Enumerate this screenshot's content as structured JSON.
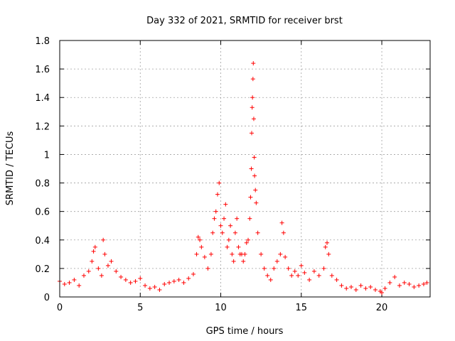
{
  "chart_data": {
    "type": "scatter",
    "title": "Day 332 of 2021, SRMTID for receiver brst",
    "xlabel": "GPS time / hours",
    "ylabel": "SRMTID / TECUs",
    "xlim": [
      0,
      23
    ],
    "ylim": [
      0,
      1.8
    ],
    "xticks": [
      0,
      5,
      10,
      15,
      20
    ],
    "yticks": [
      0,
      0.2,
      0.4,
      0.6,
      0.8,
      1,
      1.2,
      1.4,
      1.6,
      1.8
    ],
    "xtick_labels": [
      "0",
      "5",
      "10",
      "15",
      "20"
    ],
    "ytick_labels": [
      "0",
      "0.2",
      "0.4",
      "0.6",
      "0.8",
      "1",
      "1.2",
      "1.4",
      "1.6",
      "1.8"
    ],
    "grid": true,
    "marker": "+",
    "color": "#ff0000",
    "series": [
      {
        "name": "SRMTID",
        "x": [
          0.0,
          0.3,
          0.6,
          0.9,
          1.2,
          1.5,
          1.8,
          2.0,
          2.1,
          2.2,
          2.4,
          2.6,
          2.7,
          2.8,
          3.0,
          3.2,
          3.5,
          3.8,
          4.1,
          4.4,
          4.7,
          5.0,
          5.3,
          5.6,
          5.9,
          6.2,
          6.5,
          6.8,
          7.1,
          7.4,
          7.7,
          8.0,
          8.3,
          8.5,
          8.6,
          8.7,
          8.8,
          9.0,
          9.2,
          9.4,
          9.5,
          9.6,
          9.7,
          9.8,
          9.9,
          10.0,
          10.1,
          10.2,
          10.3,
          10.4,
          10.5,
          10.6,
          10.7,
          10.8,
          10.9,
          11.0,
          11.1,
          11.2,
          11.3,
          11.4,
          11.5,
          11.6,
          11.7,
          11.8,
          11.85,
          11.9,
          11.92,
          11.95,
          11.97,
          12.0,
          12.02,
          12.05,
          12.08,
          12.1,
          12.15,
          12.2,
          12.3,
          12.5,
          12.7,
          12.9,
          13.1,
          13.3,
          13.5,
          13.7,
          13.8,
          13.9,
          14.0,
          14.2,
          14.4,
          14.6,
          14.8,
          15.0,
          15.2,
          15.5,
          15.8,
          16.1,
          16.4,
          16.5,
          16.6,
          16.7,
          16.9,
          17.2,
          17.5,
          17.8,
          18.1,
          18.4,
          18.7,
          19.0,
          19.3,
          19.6,
          19.9,
          20.0,
          20.2,
          20.5,
          20.8,
          21.1,
          21.4,
          21.7,
          22.0,
          22.3,
          22.6,
          22.8
        ],
        "y": [
          0.11,
          0.09,
          0.1,
          0.12,
          0.08,
          0.15,
          0.18,
          0.25,
          0.32,
          0.35,
          0.2,
          0.15,
          0.4,
          0.3,
          0.22,
          0.25,
          0.18,
          0.14,
          0.12,
          0.1,
          0.11,
          0.13,
          0.08,
          0.06,
          0.07,
          0.05,
          0.09,
          0.1,
          0.11,
          0.12,
          0.1,
          0.13,
          0.16,
          0.3,
          0.42,
          0.4,
          0.35,
          0.28,
          0.2,
          0.3,
          0.45,
          0.55,
          0.6,
          0.72,
          0.8,
          0.5,
          0.45,
          0.55,
          0.65,
          0.35,
          0.4,
          0.5,
          0.3,
          0.25,
          0.45,
          0.55,
          0.35,
          0.3,
          0.3,
          0.25,
          0.3,
          0.38,
          0.4,
          0.55,
          0.7,
          0.9,
          1.15,
          1.33,
          1.4,
          1.53,
          1.64,
          1.25,
          0.98,
          0.85,
          0.75,
          0.66,
          0.45,
          0.3,
          0.2,
          0.15,
          0.12,
          0.2,
          0.25,
          0.3,
          0.52,
          0.45,
          0.28,
          0.2,
          0.15,
          0.18,
          0.15,
          0.22,
          0.17,
          0.12,
          0.18,
          0.15,
          0.2,
          0.35,
          0.38,
          0.3,
          0.15,
          0.12,
          0.08,
          0.06,
          0.07,
          0.05,
          0.08,
          0.06,
          0.07,
          0.05,
          0.04,
          0.03,
          0.06,
          0.1,
          0.14,
          0.08,
          0.1,
          0.09,
          0.07,
          0.08,
          0.09,
          0.1
        ]
      }
    ]
  }
}
